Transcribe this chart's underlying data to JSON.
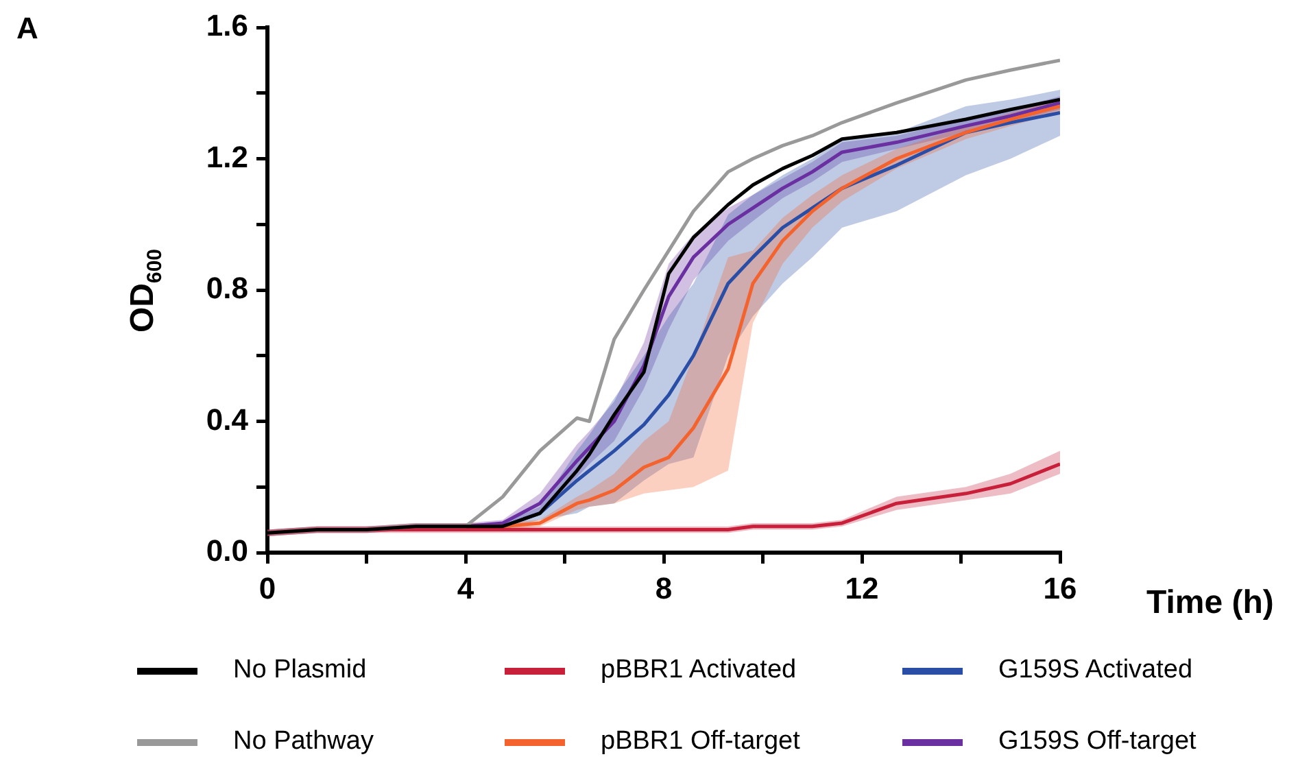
{
  "chart_data": {
    "type": "line",
    "xlabel": "Time (h)",
    "ylabel": "OD$_{600}$",
    "annotations": [
      "A"
    ],
    "x": [
      0,
      1,
      2,
      3,
      4,
      4.75,
      5.5,
      6.25,
      6.5,
      7,
      7.6,
      8.1,
      8.6,
      9.3,
      9.8,
      10.4,
      11,
      11.6,
      12.7,
      14.1,
      15,
      16
    ],
    "xlim": [
      0,
      16
    ],
    "xticks": [
      0,
      {
        "value": 2,
        "label": null
      },
      4,
      {
        "value": 6,
        "label": null
      },
      8,
      {
        "value": 10,
        "label": null
      },
      12,
      {
        "value": 14,
        "label": null
      },
      16
    ],
    "ylim": [
      0,
      1.6
    ],
    "yticks": [
      {
        "value": 0,
        "label": "0.0"
      },
      {
        "value": 0.2,
        "label": null
      },
      0.4,
      {
        "value": 0.6,
        "label": null
      },
      0.8,
      {
        "value": 1.0,
        "label": null
      },
      1.2,
      {
        "value": 1.4,
        "label": null
      },
      1.6
    ],
    "grid": false,
    "legend": "bottom",
    "marker": "none",
    "line_style": "solid",
    "series": [
      {
        "name": "No Plasmid",
        "color": "#000000",
        "values": [
          0.06,
          0.07,
          0.07,
          0.08,
          0.08,
          0.08,
          0.12,
          0.25,
          0.3,
          0.42,
          0.55,
          0.85,
          0.96,
          1.06,
          1.12,
          1.17,
          1.21,
          1.26,
          1.28,
          1.32,
          1.35,
          1.38
        ]
      },
      {
        "name": "No Pathway",
        "color": "#999999",
        "values": [
          0.06,
          0.07,
          0.07,
          0.08,
          0.08,
          0.17,
          0.31,
          0.41,
          0.4,
          0.65,
          0.8,
          0.92,
          1.04,
          1.16,
          1.2,
          1.24,
          1.27,
          1.31,
          1.37,
          1.44,
          1.47,
          1.5
        ]
      },
      {
        "name": "pBBR1 Activated",
        "color": "#c8203a",
        "values": [
          0.06,
          0.07,
          0.07,
          0.07,
          0.07,
          0.07,
          0.07,
          0.07,
          0.07,
          0.07,
          0.07,
          0.07,
          0.07,
          0.07,
          0.08,
          0.08,
          0.08,
          0.09,
          0.15,
          0.18,
          0.21,
          0.27
        ],
        "lower": [
          0.05,
          0.06,
          0.06,
          0.06,
          0.06,
          0.06,
          0.06,
          0.06,
          0.06,
          0.06,
          0.06,
          0.06,
          0.06,
          0.06,
          0.07,
          0.07,
          0.07,
          0.08,
          0.13,
          0.16,
          0.18,
          0.24
        ],
        "upper": [
          0.07,
          0.08,
          0.08,
          0.08,
          0.08,
          0.08,
          0.08,
          0.08,
          0.08,
          0.08,
          0.08,
          0.08,
          0.08,
          0.08,
          0.09,
          0.09,
          0.09,
          0.1,
          0.17,
          0.2,
          0.24,
          0.31
        ]
      },
      {
        "name": "pBBR1 Off-target",
        "color": "#f4622e",
        "values": [
          0.06,
          0.07,
          0.07,
          0.08,
          0.08,
          0.08,
          0.09,
          0.15,
          0.16,
          0.19,
          0.26,
          0.29,
          0.38,
          0.56,
          0.82,
          0.95,
          1.04,
          1.11,
          1.2,
          1.28,
          1.32,
          1.36
        ],
        "lower": [
          0.05,
          0.06,
          0.06,
          0.07,
          0.07,
          0.07,
          0.08,
          0.13,
          0.14,
          0.15,
          0.18,
          0.19,
          0.2,
          0.25,
          0.7,
          0.88,
          0.99,
          1.07,
          1.17,
          1.26,
          1.3,
          1.34
        ],
        "upper": [
          0.07,
          0.08,
          0.08,
          0.09,
          0.09,
          0.09,
          0.1,
          0.17,
          0.19,
          0.24,
          0.34,
          0.4,
          0.6,
          0.9,
          0.92,
          1.02,
          1.09,
          1.15,
          1.23,
          1.3,
          1.34,
          1.38
        ]
      },
      {
        "name": "G159S Activated",
        "color": "#2a4ea6",
        "values": [
          null,
          null,
          null,
          0.08,
          0.08,
          0.08,
          0.12,
          0.22,
          0.25,
          0.31,
          0.39,
          0.48,
          0.6,
          0.82,
          0.9,
          0.99,
          1.05,
          1.11,
          1.18,
          1.28,
          1.31,
          1.34
        ],
        "lower": [
          0.05,
          0.06,
          0.06,
          0.07,
          0.07,
          0.07,
          0.1,
          0.12,
          0.14,
          0.15,
          0.22,
          0.27,
          0.29,
          0.6,
          0.72,
          0.82,
          0.9,
          0.99,
          1.04,
          1.15,
          1.2,
          1.27
        ],
        "upper": [
          0.07,
          0.08,
          0.08,
          0.09,
          0.09,
          0.09,
          0.14,
          0.31,
          0.36,
          0.47,
          0.6,
          0.72,
          0.82,
          1.03,
          1.09,
          1.15,
          1.2,
          1.26,
          1.28,
          1.36,
          1.38,
          1.41
        ]
      },
      {
        "name": "G159S Off-target",
        "color": "#6a2fa0",
        "values": [
          null,
          null,
          0.07,
          0.08,
          0.08,
          0.09,
          0.15,
          0.28,
          0.32,
          0.4,
          0.57,
          0.78,
          0.9,
          1.0,
          1.05,
          1.11,
          1.16,
          1.22,
          1.25,
          1.3,
          1.33,
          1.37
        ],
        "lower": [
          0.05,
          0.06,
          0.06,
          0.07,
          0.07,
          0.08,
          0.12,
          0.23,
          0.27,
          0.34,
          0.5,
          0.68,
          0.83,
          0.95,
          1.01,
          1.08,
          1.13,
          1.19,
          1.23,
          1.28,
          1.31,
          1.35
        ],
        "upper": [
          0.07,
          0.08,
          0.08,
          0.09,
          0.09,
          0.1,
          0.18,
          0.33,
          0.37,
          0.46,
          0.64,
          0.88,
          0.97,
          1.05,
          1.09,
          1.14,
          1.19,
          1.25,
          1.27,
          1.32,
          1.35,
          1.39
        ]
      }
    ]
  }
}
